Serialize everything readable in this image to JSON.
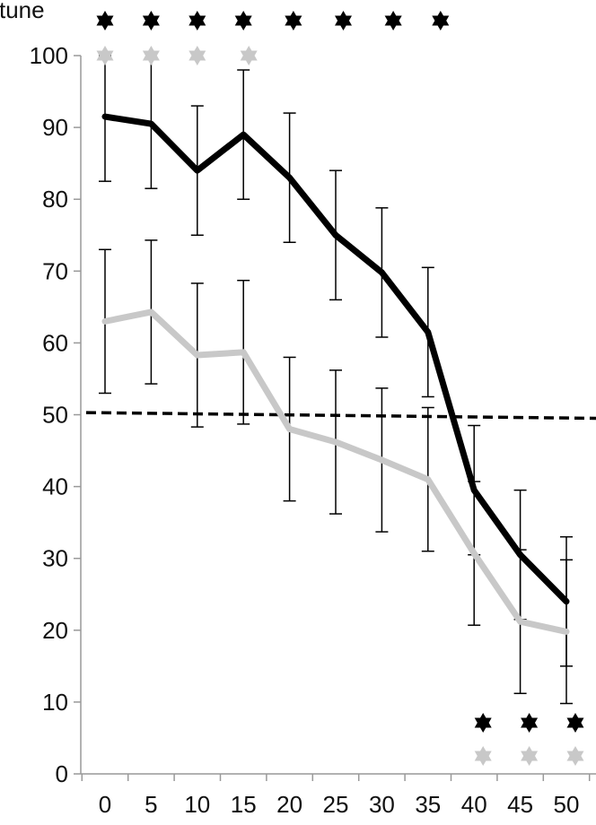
{
  "title_fragment": "ctune",
  "colors": {
    "series_dark": "#000000",
    "series_light": "#c8c8c8",
    "reference": "#000000",
    "axis": "#999999",
    "star_dark": "#000000",
    "star_light": "#c8c8c8"
  },
  "chart_data": {
    "type": "line",
    "x": [
      0,
      5,
      10,
      15,
      20,
      25,
      30,
      35,
      40,
      45,
      50
    ],
    "xlim": [
      -2.5,
      52.5
    ],
    "ylim": [
      0,
      100
    ],
    "x_ticks": [
      "0",
      "5",
      "10",
      "15",
      "20",
      "25",
      "30",
      "35",
      "40",
      "45",
      "50"
    ],
    "y_ticks": [
      "0",
      "10",
      "20",
      "30",
      "40",
      "50",
      "60",
      "70",
      "80",
      "90",
      "100"
    ],
    "grid": false,
    "series": [
      {
        "color": "#000000",
        "values": [
          91.5,
          90.5,
          84,
          89,
          83,
          75,
          69.8,
          61.5,
          39.5,
          30.5,
          24
        ],
        "error": [
          9,
          9,
          9,
          9,
          9,
          9,
          9,
          9,
          9,
          9,
          9
        ]
      },
      {
        "color": "#c8c8c8",
        "values": [
          63,
          64.3,
          58.3,
          58.7,
          48,
          46.2,
          43.7,
          41,
          30.7,
          21.2,
          19.8
        ],
        "error": [
          10,
          10,
          10,
          10,
          10,
          10,
          10,
          10,
          10,
          10,
          10
        ]
      }
    ],
    "reference_line": {
      "y_start": 50.3,
      "y_end": 49.5,
      "style": "dashed"
    },
    "significance_markers": {
      "top_dark_x": [
        0,
        5,
        10,
        15,
        20,
        25,
        30,
        35
      ],
      "top_light_x": [
        0,
        5,
        10,
        15
      ],
      "bottom_dark_x": [
        40,
        45,
        50
      ],
      "bottom_light_x": [
        40,
        45,
        50
      ]
    }
  }
}
